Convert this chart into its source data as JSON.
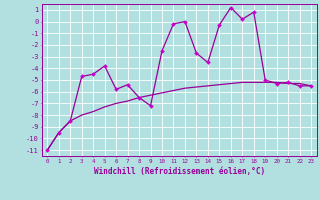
{
  "background_color": "#b2e0e0",
  "grid_color": "#ffffff",
  "line_color": "#990099",
  "marker_color": "#cc00cc",
  "xlabel": "Windchill (Refroidissement éolien,°C)",
  "xlim": [
    -0.5,
    23.5
  ],
  "ylim": [
    -11.5,
    1.5
  ],
  "yticks": [
    1,
    0,
    -1,
    -2,
    -3,
    -4,
    -5,
    -6,
    -7,
    -8,
    -9,
    -10,
    -11
  ],
  "xticks": [
    0,
    1,
    2,
    3,
    4,
    5,
    6,
    7,
    8,
    9,
    10,
    11,
    12,
    13,
    14,
    15,
    16,
    17,
    18,
    19,
    20,
    21,
    22,
    23
  ],
  "line1_x": [
    0,
    1,
    2,
    3,
    4,
    5,
    6,
    7,
    8,
    9,
    10,
    11,
    12,
    13,
    14,
    15,
    16,
    17,
    18,
    19,
    20,
    21,
    22,
    23
  ],
  "line1_y": [
    -11.0,
    -9.5,
    -8.5,
    -4.7,
    -4.5,
    -3.8,
    -5.8,
    -5.4,
    -6.5,
    -7.2,
    -2.5,
    -0.2,
    0.0,
    -2.7,
    -3.5,
    -0.3,
    1.2,
    0.2,
    0.8,
    -5.0,
    -5.3,
    -5.2,
    -5.5,
    -5.5
  ],
  "line2_x": [
    0,
    1,
    2,
    3,
    4,
    5,
    6,
    7,
    8,
    9,
    10,
    11,
    12,
    13,
    14,
    15,
    16,
    17,
    18,
    19,
    20,
    21,
    22,
    23
  ],
  "line2_y": [
    -11.0,
    -9.5,
    -8.5,
    -8.0,
    -7.7,
    -7.3,
    -7.0,
    -6.8,
    -6.5,
    -6.3,
    -6.1,
    -5.9,
    -5.7,
    -5.6,
    -5.5,
    -5.4,
    -5.3,
    -5.2,
    -5.2,
    -5.2,
    -5.2,
    -5.3,
    -5.3,
    -5.5
  ],
  "fig_width": 3.2,
  "fig_height": 2.0,
  "dpi": 100
}
